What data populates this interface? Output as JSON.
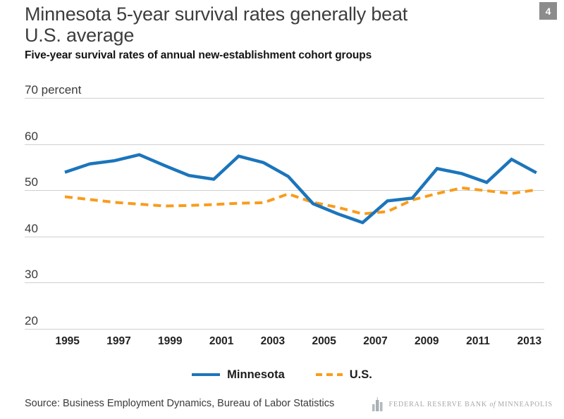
{
  "page": {
    "title_line1": "Minnesota 5-year survival rates generally beat",
    "title_line2": "U.S. average",
    "page_number": "4",
    "subtitle": "Five-year survival rates of annual new-establishment cohort groups",
    "source": "Source: Business Employment Dynamics, Bureau of Labor Statistics",
    "logo": {
      "part1": "FEDERAL RESERVE BANK",
      "part2": "of",
      "part3": "MINNEAPOLIS"
    }
  },
  "legend": {
    "minnesota": "Minnesota",
    "us": "U.S."
  },
  "colors": {
    "minnesota": "#1b75bb",
    "us": "#f89c1c",
    "gridline": "#cfcfcf",
    "badge": "#8c8c8c"
  },
  "chart_data": {
    "type": "line",
    "title": "Minnesota 5-year survival rates generally beat U.S. average",
    "subtitle": "Five-year survival rates of annual new-establishment cohort groups",
    "unit": "percent",
    "x": [
      1994,
      1995,
      1996,
      1997,
      1998,
      1999,
      2000,
      2001,
      2002,
      2003,
      2004,
      2005,
      2006,
      2007,
      2008,
      2009,
      2010,
      2011,
      2012,
      2013
    ],
    "series": [
      {
        "name": "Minnesota",
        "color": "#1b75bb",
        "style": "solid",
        "values": [
          53.9,
          55.7,
          56.4,
          57.7,
          55.4,
          53.2,
          52.4,
          57.4,
          56.0,
          53.0,
          47.1,
          44.9,
          43.0,
          47.7,
          48.3,
          54.7,
          53.6,
          51.7,
          56.7,
          53.8
        ]
      },
      {
        "name": "U.S.",
        "color": "#f89c1c",
        "style": "dashed",
        "values": [
          48.6,
          48.0,
          47.4,
          47.0,
          46.6,
          46.7,
          46.9,
          47.2,
          47.3,
          49.2,
          47.4,
          46.3,
          44.9,
          45.4,
          47.9,
          49.3,
          50.5,
          49.9,
          49.3,
          50.1
        ]
      }
    ],
    "y_ticks": [
      70,
      60,
      50,
      40,
      30,
      20
    ],
    "y_tick_labels": [
      "70 percent",
      "60",
      "50",
      "40",
      "30",
      "20"
    ],
    "x_tick_labels": [
      "1995",
      "1997",
      "1999",
      "2001",
      "2003",
      "2005",
      "2007",
      "2009",
      "2011",
      "2013"
    ],
    "ylim": [
      20,
      70
    ],
    "grid": "horizontal",
    "legend_position": "bottom"
  }
}
